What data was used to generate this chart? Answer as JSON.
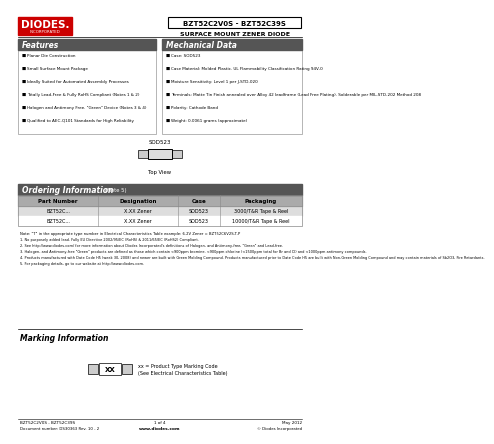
{
  "title_part": "BZT52C2V0S - BZT52C39S",
  "title_sub": "SURFACE MOUNT ZENER DIODE",
  "features_title": "Features",
  "features": [
    "Planar Die Construction",
    "Small Surface Mount Package",
    "Ideally Suited for Automated Assembly Processes",
    "Totally Lead-Free & Fully RoHS Compliant (Notes 1 & 2)",
    "Halogen and Antimony Free. \"Green\" Device (Notes 3 & 4)",
    "Qualified to AEC-Q101 Standards for High Reliability"
  ],
  "mech_title": "Mechanical Data",
  "mech": [
    "Case: SOD523",
    "Case Material: Molded Plastic. UL Flammability Classification Rating 94V-0",
    "Moisture Sensitivity: Level 1 per J-STD-020",
    "Terminals: Matte Tin Finish annealed over Alloy 42 leadframe (Lead Free Plating). Solderable per MIL-STD-202 Method 208",
    "Polarity: Cathode Band",
    "Weight: 0.0061 grams (approximate)"
  ],
  "package_label": "SOD523",
  "top_view_label": "Top View",
  "ordering_title": "Ordering Information",
  "ordering_note": "(Note 5)",
  "ordering_headers": [
    "Part Number",
    "Designation",
    "Case",
    "Packaging"
  ],
  "ordering_rows": [
    [
      "BZT52C...",
      "X.XX Zener",
      "SOD523",
      "3000/T&R Tape & Reel"
    ],
    [
      "BZT52C...",
      "X.XX Zener",
      "SOD523",
      "10000/T&R Tape & Reel"
    ]
  ],
  "ordering_note_text": "Note: \"T\" in the appropriate type number in Electrical Characteristics Table example: 6.2V Zener = BZT52C6V2S-T-P",
  "notes_text": [
    "1. No purposely added lead. Fully EU Directive 2002/95/EC (RoHS) & 2011/65/EC (RoHS2) Compliant.",
    "2. See http://www.diodes.com/ for more information about Diodes Incorporated's definitions of Halogen- and Antimony-free, \"Green\" and Lead-free.",
    "3. Halogen- and Antimony-free \"Green\" products are defined as those which contain <900ppm bromine, <900ppm chlorine (<1500ppm total for Br and Cl) and <1000ppm antimony compounds.",
    "4. Products manufactured with Date Code H5 (week 30, 2008) and newer are built with Green Molding Compound. Products manufactured prior to Date Code H5 are built with Non-Green Molding Compound and may contain materials of Sb2O3, Fire Retardants.",
    "5. For packaging details, go to our website at http://www.diodes.com."
  ],
  "marking_title": "Marking Information",
  "marking_code": "XX",
  "marking_note_1": "xx = Product Type Marking Code",
  "marking_note_2": "(See Electrical Characteristics Table)",
  "footer_left1": "BZT52C2V0S - BZT52C39S",
  "footer_left2": "Document number: DS30363 Rev. 10 - 2",
  "footer_center1": "1 of 4",
  "footer_center2": "www.diodes.com",
  "footer_right1": "May 2012",
  "footer_right2": "© Diodes Incorporated",
  "bg_color": "#ffffff",
  "red_color": "#cc0000",
  "dark_header": "#555555",
  "light_gray": "#dddddd",
  "mid_gray": "#aaaaaa"
}
